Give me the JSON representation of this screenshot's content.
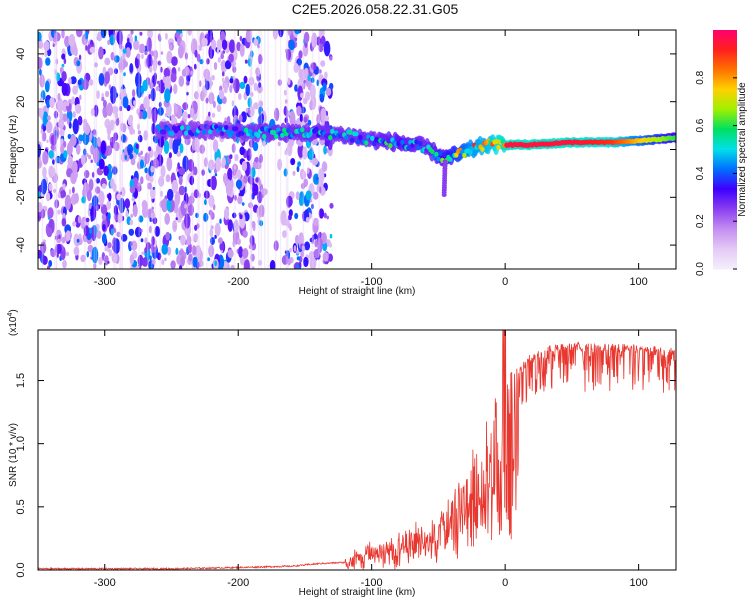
{
  "title": "C2E5.2026.058.22.31.G05",
  "colors": {
    "line": "#e8372f",
    "axis": "#000000",
    "cmap": [
      "#f4eefb",
      "#e4c9f6",
      "#c38df0",
      "#8a3ef0",
      "#3d00ff",
      "#0070ff",
      "#00e0e8",
      "#00e060",
      "#a0f000",
      "#ffd000",
      "#ff7000",
      "#ff1f1f",
      "#ff0070"
    ]
  },
  "chart_data": [
    {
      "type": "heatmap",
      "xlabel": "Height of straight line (km)",
      "ylabel": "Frequency (Hz)",
      "xlim": [
        -350,
        128
      ],
      "ylim": [
        -50,
        50
      ],
      "xticks": [
        -300,
        -200,
        -100,
        0,
        100
      ],
      "yticks": [
        -40,
        -20,
        0,
        20,
        40
      ],
      "colorbar": {
        "label": "Normalized spectral amplitude",
        "range": [
          0,
          1
        ],
        "ticks": [
          "0.0",
          "0.2",
          "0.4",
          "0.6",
          "0.8"
        ],
        "tick_values": [
          0,
          0.2,
          0.4,
          0.6,
          0.8
        ]
      },
      "ridge_track": {
        "x": [
          -260,
          -220,
          -180,
          -140,
          -120,
          -100,
          -80,
          -60,
          -45,
          -35,
          -25,
          -15,
          0,
          20,
          50,
          80,
          110,
          128
        ],
        "y": [
          8,
          8,
          7,
          7,
          6,
          4,
          3,
          1,
          -4,
          -2,
          0,
          2,
          2,
          2,
          3,
          3,
          4,
          5
        ],
        "amplitude": [
          0.45,
          0.45,
          0.5,
          0.5,
          0.5,
          0.5,
          0.55,
          0.5,
          0.6,
          0.7,
          0.8,
          0.85,
          0.95,
          0.95,
          0.95,
          0.9,
          0.7,
          0.6
        ]
      },
      "noise_region_x": [
        -350,
        -140
      ]
    },
    {
      "type": "line",
      "xlabel": "Height of straight line (km)",
      "ylabel": "SNR (10 * v/v)",
      "y_multiplier": "(x10",
      "y_multiplier_exp": "4",
      "xlim": [
        -350,
        128
      ],
      "ylim": [
        0,
        1.9
      ],
      "xticks": [
        -300,
        -200,
        -100,
        0,
        100
      ],
      "yticks": [
        "0.0",
        "0.5",
        "1.0",
        "1.5"
      ],
      "ytick_values": [
        0,
        0.5,
        1.0,
        1.5
      ],
      "series": [
        {
          "name": "SNR",
          "x": [
            -350,
            -300,
            -250,
            -200,
            -160,
            -140,
            -120,
            -110,
            -100,
            -90,
            -80,
            -70,
            -60,
            -50,
            -40,
            -30,
            -20,
            -10,
            0,
            10,
            20,
            30,
            50,
            80,
            100,
            128
          ],
          "y": [
            0.01,
            0.01,
            0.01,
            0.02,
            0.03,
            0.05,
            0.06,
            0.1,
            0.15,
            0.2,
            0.25,
            0.3,
            0.35,
            0.4,
            0.55,
            0.75,
            1.0,
            1.25,
            1.45,
            1.6,
            1.7,
            1.75,
            1.78,
            1.77,
            1.76,
            1.75
          ]
        }
      ]
    }
  ]
}
